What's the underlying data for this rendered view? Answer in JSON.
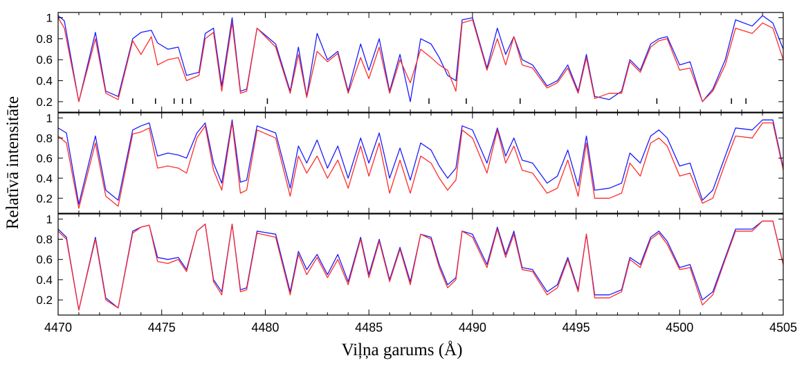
{
  "chart_data": [
    {
      "type": "line",
      "xlim": [
        4470,
        4505
      ],
      "ylim": [
        0.1,
        1.05
      ],
      "ylabel": "Relatīvā intensitāte",
      "y_ticks": [
        0.2,
        0.4,
        0.6,
        0.8,
        1.0
      ],
      "y_tick_labels": [
        "0.2",
        "0.4",
        "0.6",
        "0.8",
        "1"
      ],
      "grid": false,
      "line_markers": [
        4473.6,
        4474.7,
        4475.6,
        4476.0,
        4476.4,
        4480.1,
        4487.9,
        4489.7,
        4492.3,
        4498.9,
        4502.5,
        4503.2
      ],
      "series": [
        {
          "color": "#1a1aff",
          "x": [
            4470.0,
            4470.3,
            4471.0,
            4471.8,
            4472.3,
            4472.9,
            4473.6,
            4474.0,
            4474.5,
            4474.8,
            4475.3,
            4475.8,
            4476.2,
            4476.8,
            4477.1,
            4477.5,
            4477.9,
            4478.4,
            4478.8,
            4479.1,
            4479.6,
            4480.5,
            4481.2,
            4481.6,
            4482.0,
            4482.5,
            4483.0,
            4483.5,
            4484.0,
            4484.6,
            4485.0,
            4485.5,
            4486.0,
            4486.5,
            4487.0,
            4487.5,
            4488.0,
            4488.4,
            4488.8,
            4489.2,
            4489.5,
            4490.0,
            4490.7,
            4491.2,
            4491.6,
            4492.0,
            4492.4,
            4492.9,
            4493.6,
            4494.1,
            4494.6,
            4495.1,
            4495.5,
            4495.9,
            4496.6,
            4497.2,
            4497.6,
            4498.1,
            4498.6,
            4499.0,
            4499.4,
            4500.0,
            4500.5,
            4501.1,
            4501.6,
            4502.2,
            4502.7,
            4503.5,
            4504.0,
            4504.5,
            4505.0
          ],
          "y": [
            1.02,
            0.97,
            0.2,
            0.86,
            0.3,
            0.25,
            0.8,
            0.86,
            0.88,
            0.76,
            0.7,
            0.72,
            0.45,
            0.48,
            0.85,
            0.9,
            0.35,
            1.0,
            0.3,
            0.32,
            0.9,
            0.75,
            0.3,
            0.72,
            0.25,
            0.85,
            0.6,
            0.68,
            0.3,
            0.75,
            0.5,
            0.8,
            0.3,
            0.65,
            0.2,
            0.8,
            0.75,
            0.62,
            0.45,
            0.4,
            0.98,
            1.0,
            0.52,
            0.9,
            0.65,
            0.82,
            0.6,
            0.55,
            0.35,
            0.4,
            0.55,
            0.3,
            0.65,
            0.25,
            0.22,
            0.3,
            0.6,
            0.5,
            0.75,
            0.8,
            0.82,
            0.55,
            0.58,
            0.2,
            0.32,
            0.6,
            0.98,
            0.92,
            1.02,
            0.95,
            0.7
          ]
        },
        {
          "color": "#ff2a2a",
          "x": [
            4470.0,
            4470.3,
            4471.0,
            4471.8,
            4472.3,
            4472.9,
            4473.6,
            4474.0,
            4474.5,
            4474.8,
            4475.3,
            4475.8,
            4476.2,
            4476.8,
            4477.1,
            4477.5,
            4477.9,
            4478.4,
            4478.8,
            4479.1,
            4479.6,
            4480.5,
            4481.2,
            4481.6,
            4482.0,
            4482.5,
            4483.0,
            4483.5,
            4484.0,
            4484.6,
            4485.0,
            4485.5,
            4486.0,
            4486.5,
            4487.0,
            4487.5,
            4488.0,
            4488.4,
            4488.8,
            4489.2,
            4489.5,
            4490.0,
            4490.7,
            4491.2,
            4491.6,
            4492.0,
            4492.4,
            4492.9,
            4493.6,
            4494.1,
            4494.6,
            4495.1,
            4495.5,
            4495.9,
            4496.6,
            4497.2,
            4497.6,
            4498.1,
            4498.6,
            4499.0,
            4499.4,
            4500.0,
            4500.5,
            4501.1,
            4501.6,
            4502.2,
            4502.7,
            4503.5,
            4504.0,
            4504.5,
            4505.0
          ],
          "y": [
            1.0,
            0.9,
            0.2,
            0.8,
            0.28,
            0.22,
            0.78,
            0.65,
            0.82,
            0.55,
            0.6,
            0.62,
            0.4,
            0.45,
            0.8,
            0.86,
            0.3,
            0.95,
            0.28,
            0.3,
            0.9,
            0.72,
            0.28,
            0.65,
            0.24,
            0.68,
            0.58,
            0.66,
            0.28,
            0.62,
            0.42,
            0.72,
            0.28,
            0.6,
            0.38,
            0.7,
            0.62,
            0.55,
            0.5,
            0.3,
            0.95,
            0.98,
            0.5,
            0.8,
            0.55,
            0.82,
            0.55,
            0.52,
            0.33,
            0.38,
            0.52,
            0.28,
            0.62,
            0.23,
            0.28,
            0.28,
            0.58,
            0.48,
            0.72,
            0.78,
            0.8,
            0.5,
            0.52,
            0.2,
            0.3,
            0.55,
            0.9,
            0.85,
            0.95,
            0.9,
            0.6
          ]
        }
      ]
    },
    {
      "type": "line",
      "xlim": [
        4470,
        4505
      ],
      "ylim": [
        0.05,
        1.05
      ],
      "y_ticks": [
        0.2,
        0.4,
        0.6,
        0.8,
        1.0
      ],
      "y_tick_labels": [
        "0.2",
        "0.4",
        "0.6",
        "0.8",
        "1"
      ],
      "grid": false,
      "series": [
        {
          "color": "#1a1aff",
          "x": [
            4470.0,
            4470.4,
            4471.0,
            4471.8,
            4472.3,
            4472.9,
            4473.6,
            4474.0,
            4474.4,
            4474.8,
            4475.3,
            4475.8,
            4476.2,
            4476.7,
            4477.1,
            4477.5,
            4477.9,
            4478.4,
            4478.8,
            4479.1,
            4479.6,
            4480.5,
            4481.2,
            4481.6,
            4482.0,
            4482.5,
            4483.0,
            4483.5,
            4484.0,
            4484.6,
            4485.0,
            4485.5,
            4486.0,
            4486.5,
            4487.0,
            4487.5,
            4488.0,
            4488.4,
            4488.8,
            4489.2,
            4489.5,
            4490.0,
            4490.7,
            4491.2,
            4491.6,
            4492.0,
            4492.4,
            4492.9,
            4493.6,
            4494.1,
            4494.6,
            4495.1,
            4495.5,
            4495.9,
            4496.6,
            4497.2,
            4497.6,
            4498.1,
            4498.6,
            4499.0,
            4499.4,
            4500.0,
            4500.5,
            4501.1,
            4501.6,
            4502.2,
            4502.7,
            4503.5,
            4504.0,
            4504.5,
            4505.0
          ],
          "y": [
            0.9,
            0.85,
            0.14,
            0.82,
            0.28,
            0.18,
            0.88,
            0.92,
            0.95,
            0.62,
            0.65,
            0.63,
            0.6,
            0.85,
            0.95,
            0.55,
            0.35,
            0.98,
            0.36,
            0.38,
            0.92,
            0.85,
            0.3,
            0.72,
            0.55,
            0.78,
            0.5,
            0.72,
            0.4,
            0.8,
            0.55,
            0.85,
            0.4,
            0.7,
            0.38,
            0.75,
            0.68,
            0.52,
            0.4,
            0.5,
            0.92,
            0.88,
            0.55,
            0.9,
            0.62,
            0.8,
            0.58,
            0.55,
            0.35,
            0.42,
            0.68,
            0.32,
            0.82,
            0.28,
            0.3,
            0.35,
            0.65,
            0.55,
            0.82,
            0.88,
            0.8,
            0.52,
            0.55,
            0.18,
            0.28,
            0.62,
            0.9,
            0.88,
            0.98,
            0.98,
            0.5
          ]
        },
        {
          "color": "#ff2a2a",
          "x": [
            4470.0,
            4470.4,
            4471.0,
            4471.8,
            4472.3,
            4472.9,
            4473.6,
            4474.0,
            4474.4,
            4474.8,
            4475.3,
            4475.8,
            4476.2,
            4476.7,
            4477.1,
            4477.5,
            4477.9,
            4478.4,
            4478.8,
            4479.1,
            4479.6,
            4480.5,
            4481.2,
            4481.6,
            4482.0,
            4482.5,
            4483.0,
            4483.5,
            4484.0,
            4484.6,
            4485.0,
            4485.5,
            4486.0,
            4486.5,
            4487.0,
            4487.5,
            4488.0,
            4488.4,
            4488.8,
            4489.2,
            4489.5,
            4490.0,
            4490.7,
            4491.2,
            4491.6,
            4492.0,
            4492.4,
            4492.9,
            4493.6,
            4494.1,
            4494.6,
            4495.1,
            4495.5,
            4495.9,
            4496.6,
            4497.2,
            4497.6,
            4498.1,
            4498.6,
            4499.0,
            4499.4,
            4500.0,
            4500.5,
            4501.1,
            4501.6,
            4502.2,
            4502.7,
            4503.5,
            4504.0,
            4504.5,
            4505.0
          ],
          "y": [
            0.82,
            0.75,
            0.1,
            0.75,
            0.22,
            0.12,
            0.84,
            0.86,
            0.9,
            0.5,
            0.52,
            0.5,
            0.45,
            0.8,
            0.92,
            0.48,
            0.28,
            0.95,
            0.25,
            0.28,
            0.88,
            0.8,
            0.22,
            0.62,
            0.45,
            0.62,
            0.4,
            0.58,
            0.3,
            0.72,
            0.42,
            0.75,
            0.25,
            0.58,
            0.25,
            0.62,
            0.55,
            0.4,
            0.28,
            0.38,
            0.88,
            0.8,
            0.45,
            0.88,
            0.55,
            0.72,
            0.48,
            0.45,
            0.25,
            0.3,
            0.58,
            0.22,
            0.75,
            0.2,
            0.2,
            0.25,
            0.55,
            0.42,
            0.75,
            0.8,
            0.72,
            0.42,
            0.45,
            0.15,
            0.2,
            0.55,
            0.82,
            0.8,
            0.95,
            0.95,
            0.48
          ]
        }
      ]
    },
    {
      "type": "line",
      "xlim": [
        4470,
        4505
      ],
      "ylim": [
        0.05,
        1.05
      ],
      "x_ticks": [
        4470,
        4475,
        4480,
        4485,
        4490,
        4495,
        4500,
        4505
      ],
      "x_tick_labels": [
        "4470",
        "4475",
        "4480",
        "4485",
        "4490",
        "4495",
        "4500",
        "4505"
      ],
      "xlabel": "Viļņa garums (Å)",
      "y_ticks": [
        0.2,
        0.4,
        0.6,
        0.8,
        1.0
      ],
      "y_tick_labels": [
        "0.2",
        "0.4",
        "0.6",
        "0.8",
        "1"
      ],
      "grid": false,
      "series": [
        {
          "color": "#1a1aff",
          "x": [
            4470.0,
            4470.4,
            4471.0,
            4471.8,
            4472.3,
            4472.9,
            4473.6,
            4474.0,
            4474.4,
            4474.8,
            4475.3,
            4475.8,
            4476.2,
            4476.7,
            4477.1,
            4477.5,
            4477.9,
            4478.4,
            4478.8,
            4479.1,
            4479.6,
            4480.5,
            4481.2,
            4481.6,
            4482.0,
            4482.5,
            4483.0,
            4483.5,
            4484.0,
            4484.6,
            4485.0,
            4485.5,
            4486.0,
            4486.5,
            4487.0,
            4487.5,
            4488.0,
            4488.4,
            4488.8,
            4489.2,
            4489.5,
            4490.0,
            4490.7,
            4491.2,
            4491.6,
            4492.0,
            4492.4,
            4492.9,
            4493.6,
            4494.1,
            4494.6,
            4495.1,
            4495.5,
            4495.9,
            4496.6,
            4497.2,
            4497.6,
            4498.1,
            4498.6,
            4499.0,
            4499.4,
            4500.0,
            4500.5,
            4501.1,
            4501.6,
            4502.2,
            4502.7,
            4503.5,
            4504.0,
            4504.5,
            4505.0
          ],
          "y": [
            0.9,
            0.82,
            0.1,
            0.82,
            0.22,
            0.12,
            0.88,
            0.92,
            0.94,
            0.62,
            0.6,
            0.62,
            0.5,
            0.88,
            0.95,
            0.4,
            0.28,
            0.95,
            0.3,
            0.32,
            0.88,
            0.85,
            0.28,
            0.68,
            0.5,
            0.65,
            0.45,
            0.65,
            0.38,
            0.82,
            0.45,
            0.8,
            0.4,
            0.72,
            0.38,
            0.85,
            0.82,
            0.55,
            0.35,
            0.42,
            0.88,
            0.85,
            0.55,
            0.92,
            0.65,
            0.88,
            0.52,
            0.5,
            0.28,
            0.35,
            0.62,
            0.3,
            0.85,
            0.25,
            0.25,
            0.3,
            0.62,
            0.55,
            0.82,
            0.88,
            0.78,
            0.52,
            0.55,
            0.2,
            0.28,
            0.62,
            0.9,
            0.9,
            0.98,
            0.98,
            0.55
          ]
        },
        {
          "color": "#ff2a2a",
          "x": [
            4470.0,
            4470.4,
            4471.0,
            4471.8,
            4472.3,
            4472.9,
            4473.6,
            4474.0,
            4474.4,
            4474.8,
            4475.3,
            4475.8,
            4476.2,
            4476.7,
            4477.1,
            4477.5,
            4477.9,
            4478.4,
            4478.8,
            4479.1,
            4479.6,
            4480.5,
            4481.2,
            4481.6,
            4482.0,
            4482.5,
            4483.0,
            4483.5,
            4484.0,
            4484.6,
            4485.0,
            4485.5,
            4486.0,
            4486.5,
            4487.0,
            4487.5,
            4488.0,
            4488.4,
            4488.8,
            4489.2,
            4489.5,
            4490.0,
            4490.7,
            4491.2,
            4491.6,
            4492.0,
            4492.4,
            4492.9,
            4493.6,
            4494.1,
            4494.6,
            4495.1,
            4495.5,
            4495.9,
            4496.6,
            4497.2,
            4497.6,
            4498.1,
            4498.6,
            4499.0,
            4499.4,
            4500.0,
            4500.5,
            4501.1,
            4501.6,
            4502.2,
            4502.7,
            4503.5,
            4504.0,
            4504.5,
            4505.0
          ],
          "y": [
            0.88,
            0.8,
            0.1,
            0.8,
            0.2,
            0.12,
            0.86,
            0.92,
            0.94,
            0.58,
            0.56,
            0.6,
            0.48,
            0.88,
            0.95,
            0.38,
            0.25,
            0.95,
            0.28,
            0.3,
            0.86,
            0.82,
            0.25,
            0.65,
            0.45,
            0.62,
            0.42,
            0.6,
            0.35,
            0.8,
            0.42,
            0.78,
            0.38,
            0.7,
            0.35,
            0.85,
            0.8,
            0.52,
            0.32,
            0.4,
            0.88,
            0.82,
            0.52,
            0.9,
            0.62,
            0.85,
            0.5,
            0.48,
            0.25,
            0.32,
            0.6,
            0.28,
            0.85,
            0.22,
            0.22,
            0.28,
            0.6,
            0.52,
            0.8,
            0.86,
            0.75,
            0.5,
            0.52,
            0.15,
            0.25,
            0.6,
            0.88,
            0.88,
            0.98,
            0.98,
            0.55
          ]
        }
      ]
    }
  ]
}
